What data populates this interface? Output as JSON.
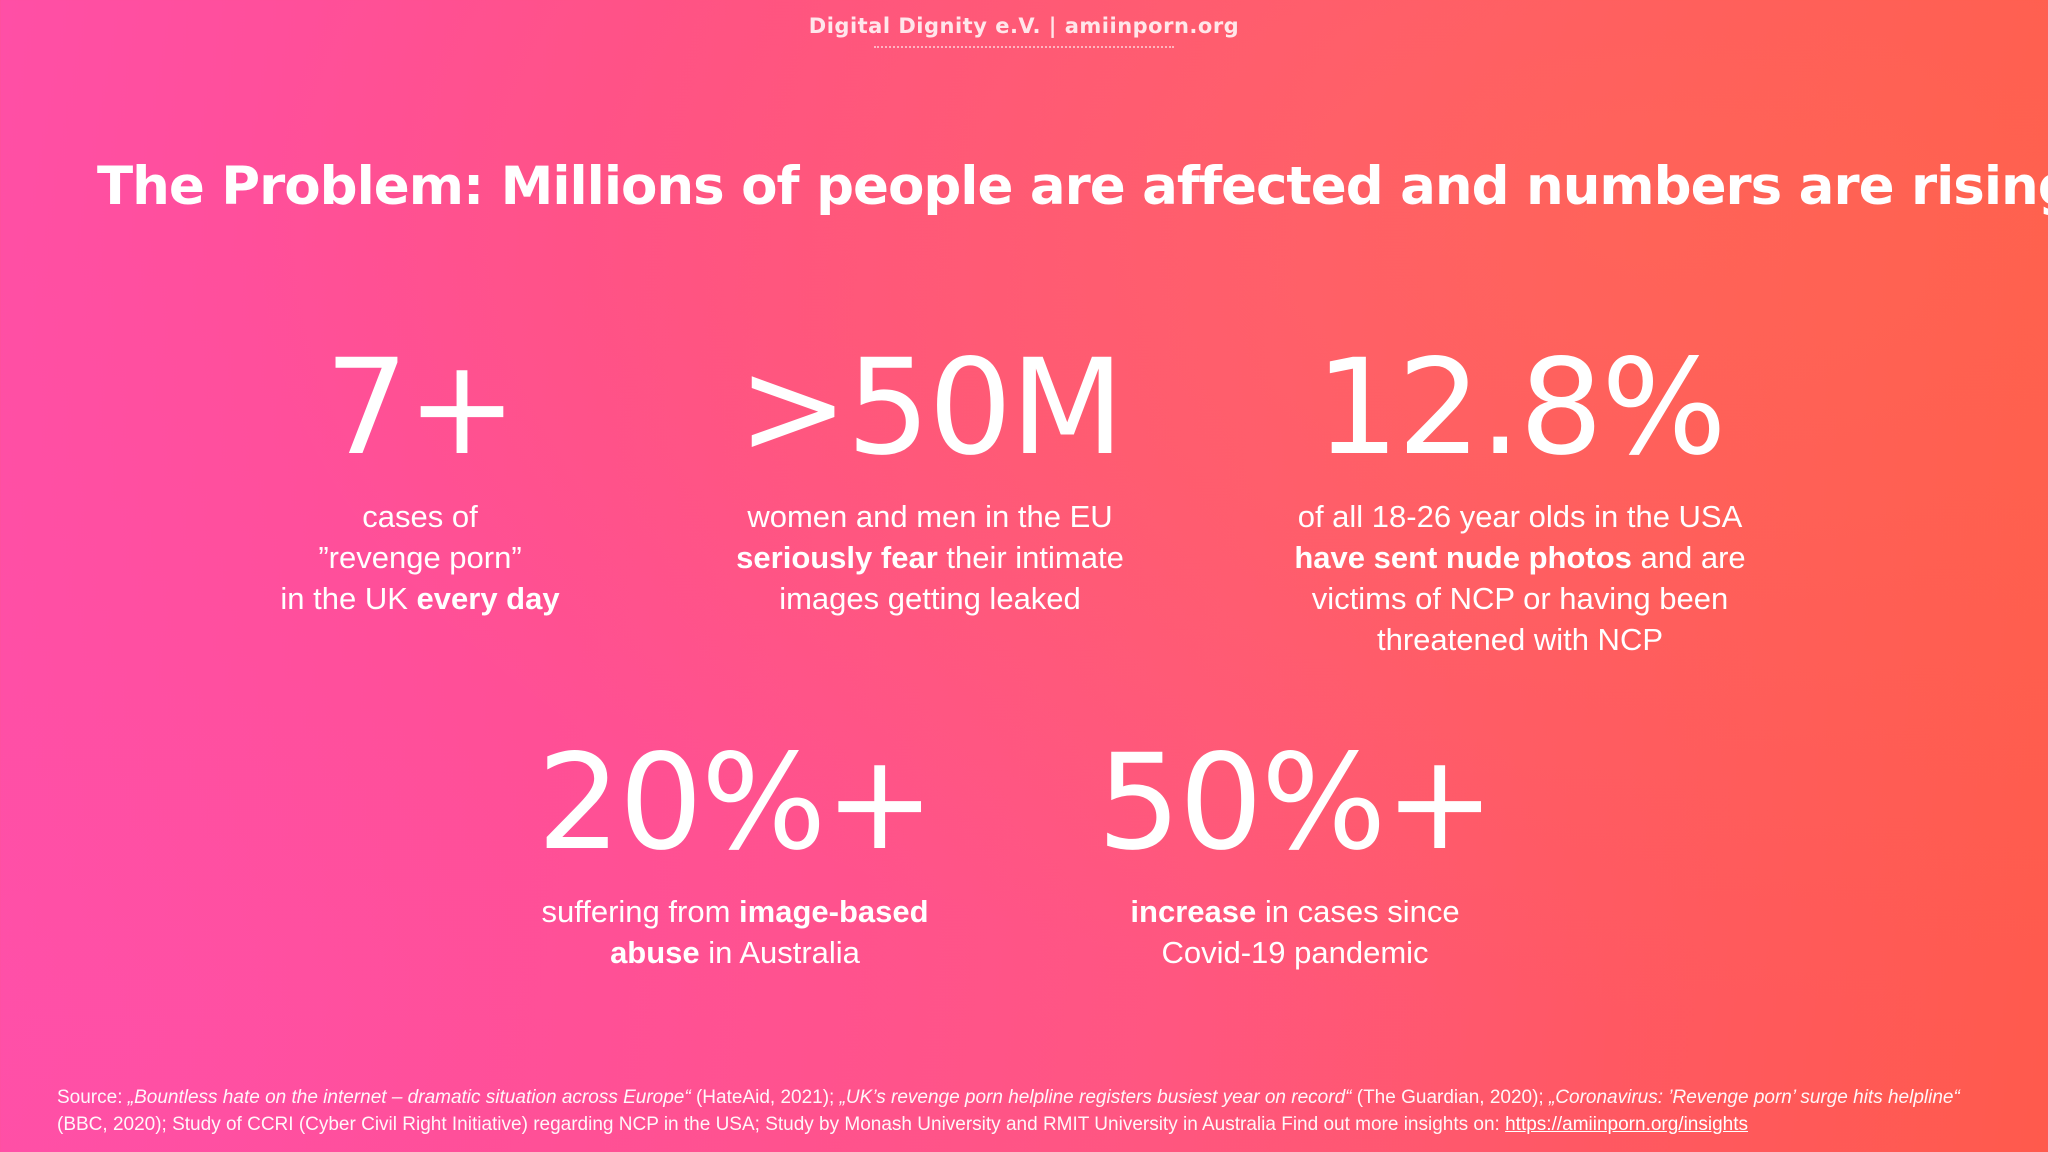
{
  "header": {
    "text": "Digital Dignity e.V. | amiinporn.org"
  },
  "title": "The Problem: Millions of people are affected and numbers are rising",
  "stats": [
    {
      "number": "7+",
      "lines": [
        {
          "a": "cases of",
          "b": "",
          "c": ""
        },
        {
          "a": "”revenge porn”",
          "b": "",
          "c": ""
        },
        {
          "a": "in the UK ",
          "b": "every day",
          "c": ""
        }
      ]
    },
    {
      "number": ">50M",
      "lines": [
        {
          "a": "women and men in the EU",
          "b": "",
          "c": ""
        },
        {
          "a": "",
          "b": "seriously fear",
          "c": " their intimate"
        },
        {
          "a": "images getting leaked",
          "b": "",
          "c": ""
        }
      ]
    },
    {
      "number": "12.8%",
      "lines": [
        {
          "a": "of all 18-26 year olds in the USA",
          "b": "",
          "c": ""
        },
        {
          "a": "",
          "b": "have sent nude photos",
          "c": " and are"
        },
        {
          "a": "victims of NCP or having been",
          "b": "",
          "c": ""
        },
        {
          "a": "threatened with NCP",
          "b": "",
          "c": ""
        }
      ]
    },
    {
      "number": "20%+",
      "lines": [
        {
          "a": "suffering from ",
          "b": "image-based",
          "c": ""
        },
        {
          "a": "",
          "b": "abuse",
          "c": " in Australia"
        }
      ]
    },
    {
      "number": "50%+",
      "lines": [
        {
          "a": "",
          "b": "increase",
          "c": " in cases since"
        },
        {
          "a": "Covid-19 pandemic",
          "b": "",
          "c": ""
        }
      ]
    }
  ],
  "source": {
    "prefix": "Source: ",
    "q1": "„Bountless hate on the internet – dramatic situation across Europe“",
    "t1": " (HateAid, 2021); ",
    "q2": "„UK’s revenge porn helpline registers busiest year on record“",
    "t2": " (The Guardian, 2020); ",
    "q3": "„Coronavirus: ’Revenge porn’ surge hits helpline“",
    "t3": " (BBC, 2020); Study of CCRI (Cyber Civil Right Initiative) regarding NCP in the USA; Study by Monash University and RMIT University in Australia Find out more insights on: ",
    "link": "https://amiinporn.org/insights"
  }
}
